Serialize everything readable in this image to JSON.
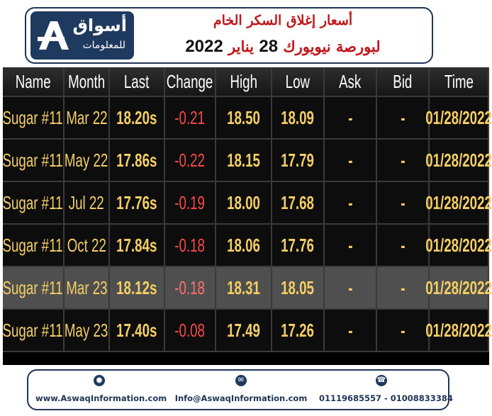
{
  "header": {
    "logo_name": "أسواق",
    "logo_sub": "للمعلومات",
    "title_line1": "أسعار إغلاق السكر الخام",
    "title_line2_prefix": "لبورصة نيويورك",
    "title_line2_day": "28",
    "title_line2_month": "يناير",
    "title_line2_year": "2022"
  },
  "table": {
    "columns": [
      "Name",
      "Month",
      "Last",
      "Change",
      "High",
      "Low",
      "Ask",
      "Bid",
      "Time"
    ],
    "rows": [
      {
        "name": "Sugar #11",
        "month": "Mar 22",
        "last": "18.20s",
        "change": "-0.21",
        "high": "18.50",
        "low": "18.09",
        "ask": "-",
        "bid": "-",
        "time": "01/28/2022"
      },
      {
        "name": "Sugar #11",
        "month": "May 22",
        "last": "17.86s",
        "change": "-0.22",
        "high": "18.15",
        "low": "17.79",
        "ask": "-",
        "bid": "-",
        "time": "01/28/2022"
      },
      {
        "name": "Sugar #11",
        "month": "Jul 22",
        "last": "17.76s",
        "change": "-0.19",
        "high": "18.00",
        "low": "17.68",
        "ask": "-",
        "bid": "-",
        "time": "01/28/2022"
      },
      {
        "name": "Sugar #11",
        "month": "Oct 22",
        "last": "17.84s",
        "change": "-0.18",
        "high": "18.06",
        "low": "17.76",
        "ask": "-",
        "bid": "-",
        "time": "01/28/2022"
      },
      {
        "name": "Sugar #11",
        "month": "Mar 23",
        "last": "18.12s",
        "change": "-0.18",
        "high": "18.31",
        "low": "18.05",
        "ask": "-",
        "bid": "-",
        "time": "01/28/2022"
      },
      {
        "name": "Sugar #11",
        "month": "May 23",
        "last": "17.40s",
        "change": "-0.08",
        "high": "17.49",
        "low": "17.26",
        "ask": "-",
        "bid": "-",
        "time": "01/28/2022"
      }
    ]
  },
  "footer": {
    "website": "www.AswaqInformation.com",
    "email": "Info@AswaqInformation.com",
    "phones": "01119685557 - 01008833384"
  },
  "colors": {
    "brand_navy": "#1f3a5f",
    "title_red": "#c0151a",
    "value_yellow": "#f5cf64",
    "change_red": "#ff4747"
  },
  "icons": {
    "web": "globe-icon",
    "email": "envelope-icon",
    "phone": "phone-icon"
  }
}
